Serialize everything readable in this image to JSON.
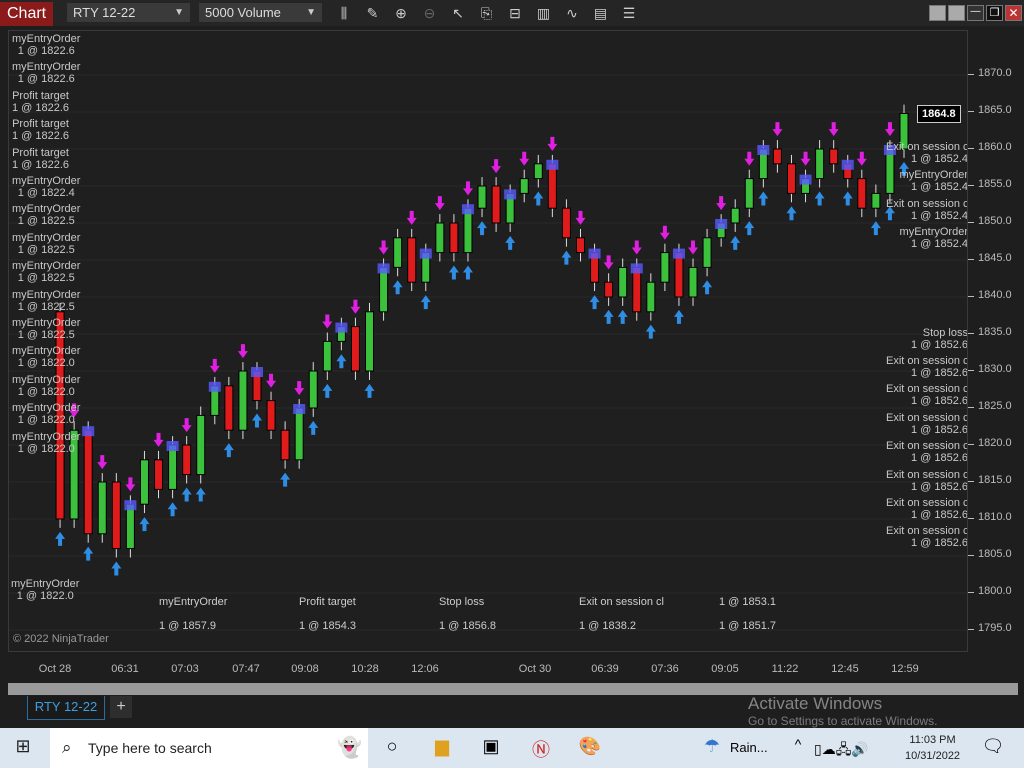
{
  "window": {
    "title": "Chart",
    "instrument": "RTY 12-22",
    "interval": "5000 Volume"
  },
  "toolbar": {
    "icons": [
      "bar-type-icon",
      "drawing-tool-icon",
      "zoom-in-icon",
      "zoom-out-icon",
      "pointer-icon",
      "data-box-icon",
      "chart-trader-icon",
      "indicators-icon",
      "strategies-icon",
      "templates-icon",
      "properties-icon"
    ]
  },
  "colors": {
    "up": "#3cc13c",
    "down": "#e01b1b",
    "buy_arrow": "#2f8de4",
    "sell_arrow": "#e020e0",
    "bar_highlight": "#5a5aff"
  },
  "chart_data": {
    "type": "candlestick",
    "ylim": [
      1792,
      1878
    ],
    "yticks": [
      "1870.0",
      "1865.0",
      "1860.0",
      "1855.0",
      "1850.0",
      "1845.0",
      "1840.0",
      "1835.0",
      "1830.0",
      "1825.0",
      "1820.0",
      "1815.0",
      "1810.0",
      "1805.0",
      "1800.0",
      "1795.0"
    ],
    "last_price": "1864.8",
    "xticks": [
      "Oct 28",
      "06:31",
      "07:03",
      "07:47",
      "09:08",
      "10:28",
      "12:06",
      "Oct 30",
      "06:39",
      "07:36",
      "09:05",
      "11:22",
      "12:45",
      "12:59"
    ],
    "closes": [
      1838,
      1810,
      1822,
      1808,
      1815,
      1806,
      1812,
      1818,
      1814,
      1820,
      1816,
      1824,
      1828,
      1822,
      1830,
      1826,
      1822,
      1818,
      1825,
      1830,
      1834,
      1836,
      1830,
      1838,
      1844,
      1848,
      1842,
      1846,
      1850,
      1846,
      1852,
      1855,
      1850,
      1854,
      1856,
      1858,
      1852,
      1848,
      1846,
      1842,
      1840,
      1844,
      1838,
      1842,
      1846,
      1840,
      1844,
      1848,
      1850,
      1852,
      1856,
      1860,
      1858,
      1854,
      1856,
      1860,
      1858,
      1856,
      1852,
      1854,
      1860,
      1864.8
    ]
  },
  "order_labels": {
    "left": [
      {
        "name": "myEntryOrder",
        "qty": "1 @ 1822.6"
      },
      {
        "name": "myEntryOrder",
        "qty": "1 @ 1822.6"
      },
      {
        "name": "Profit target",
        "qty": "1 @ 1822.6"
      },
      {
        "name": "Profit target",
        "qty": "1 @ 1822.6"
      },
      {
        "name": "Profit target",
        "qty": "1 @ 1822.6"
      },
      {
        "name": "myEntryOrder",
        "qty": "1 @ 1822.4"
      },
      {
        "name": "myEntryOrder",
        "qty": "1 @ 1822.5"
      },
      {
        "name": "myEntryOrder",
        "qty": "1 @ 1822.5"
      },
      {
        "name": "myEntryOrder",
        "qty": "1 @ 1822.5"
      },
      {
        "name": "myEntryOrder",
        "qty": "1 @ 1822.5"
      },
      {
        "name": "myEntryOrder",
        "qty": "1 @ 1822.5"
      },
      {
        "name": "myEntryOrder",
        "qty": "1 @ 1822.0"
      },
      {
        "name": "myEntryOrder",
        "qty": "1 @ 1822.0"
      },
      {
        "name": "myEntryOrder",
        "qty": "1 @ 1822.0"
      },
      {
        "name": "myEntryOrder",
        "qty": "1 @ 1822.0"
      }
    ],
    "bottom_left": {
      "name": "myEntryOrder",
      "qty": "1 @ 1822.0"
    },
    "right": [
      {
        "name": "Exit on session cl",
        "qty": "1 @ 1852.4"
      },
      {
        "name": "myEntryOrder",
        "qty": "1 @ 1852.4"
      },
      {
        "name": "Exit on session cl",
        "qty": "1 @ 1852.4"
      },
      {
        "name": "myEntryOrder",
        "qty": "1 @ 1852.4"
      },
      {
        "name": "Stop loss",
        "qty": "1 @ 1852.6"
      },
      {
        "name": "Exit on session cl",
        "qty": "1 @ 1852.6"
      },
      {
        "name": "Exit on session cl",
        "qty": "1 @ 1852.6"
      },
      {
        "name": "Exit on session cl",
        "qty": "1 @ 1852.6"
      },
      {
        "name": "Exit on session cl",
        "qty": "1 @ 1852.6"
      },
      {
        "name": "Exit on session cl",
        "qty": "1 @ 1852.6"
      },
      {
        "name": "Exit on session cl",
        "qty": "1 @ 1852.6"
      },
      {
        "name": "Exit on session cl",
        "qty": "1 @ 1852.6"
      }
    ],
    "overlap_strings": [
      "myEntryOrder",
      "Profit target",
      "Stop loss",
      "Exit on session cl",
      "1 @ 1853.1",
      "1 @ 1857.9",
      "1 @ 1854.3",
      "1 @ 1856.8",
      "1 @ 1838.2",
      "1 @ 1851.7"
    ]
  },
  "copyright": "© 2022 NinjaTrader",
  "tabs": [
    {
      "label": "RTY 12-22"
    }
  ],
  "add_tab": "+",
  "watermark": {
    "line1": "Activate Windows",
    "line2": "Go to Settings to activate Windows."
  },
  "taskbar": {
    "search_placeholder": "Type here to search",
    "weather": "Rain...",
    "time": "11:03 PM",
    "date": "10/31/2022"
  }
}
